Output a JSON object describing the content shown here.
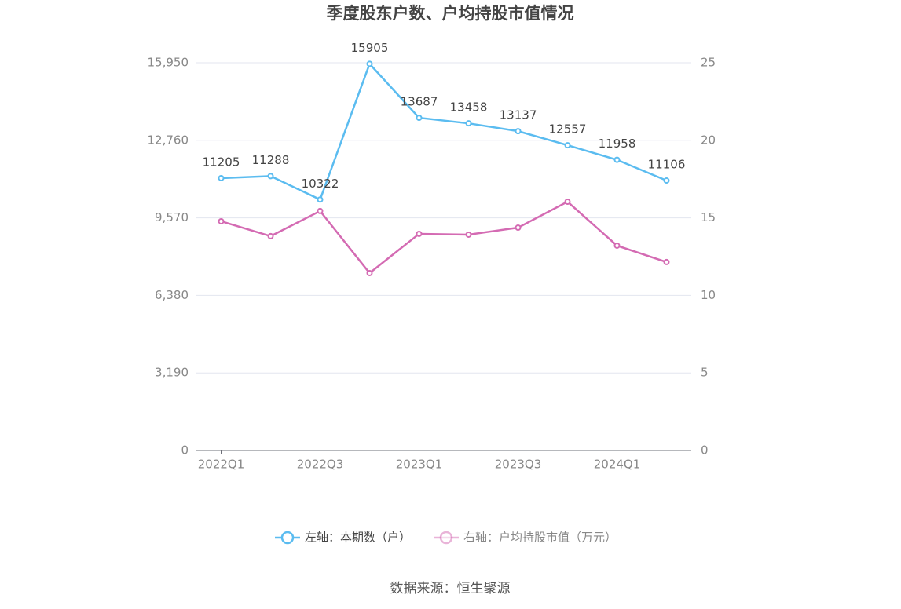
{
  "chart_data": {
    "type": "line",
    "title": "季度股东户数、户均持股市值情况",
    "categories": [
      "2022Q1",
      null,
      "2022Q3",
      null,
      "2023Q1",
      null,
      "2023Q3",
      null,
      "2024Q1",
      null
    ],
    "series": [
      {
        "name": "左轴：本期数（户）",
        "color": "#5bbcf0",
        "values": [
          11205,
          11288,
          10322,
          15905,
          13687,
          13458,
          13137,
          12557,
          11958,
          11106
        ],
        "show_labels": true
      },
      {
        "name": "右轴：户均持股市值（万元）",
        "color": "#d46bb3",
        "axis": "y2",
        "values": [
          14.78,
          13.82,
          15.44,
          11.44,
          13.97,
          13.92,
          14.37,
          16.04,
          13.21,
          12.15
        ],
        "show_labels": false
      }
    ],
    "ylim": [
      0,
      15950
    ],
    "yticks": [
      0,
      {
        "value": 3190,
        "label": "3,190"
      },
      {
        "value": 6380,
        "label": "6,380"
      },
      {
        "value": 9570,
        "label": "9,570"
      },
      {
        "value": 12760,
        "label": "12,760"
      },
      {
        "value": 15950,
        "label": "15,950"
      }
    ],
    "y2lim": [
      0,
      25
    ],
    "y2ticks": [
      0,
      5,
      10,
      15,
      20,
      25
    ],
    "grid": true,
    "legend": "bottom",
    "source": "数据来源：恒生聚源"
  }
}
